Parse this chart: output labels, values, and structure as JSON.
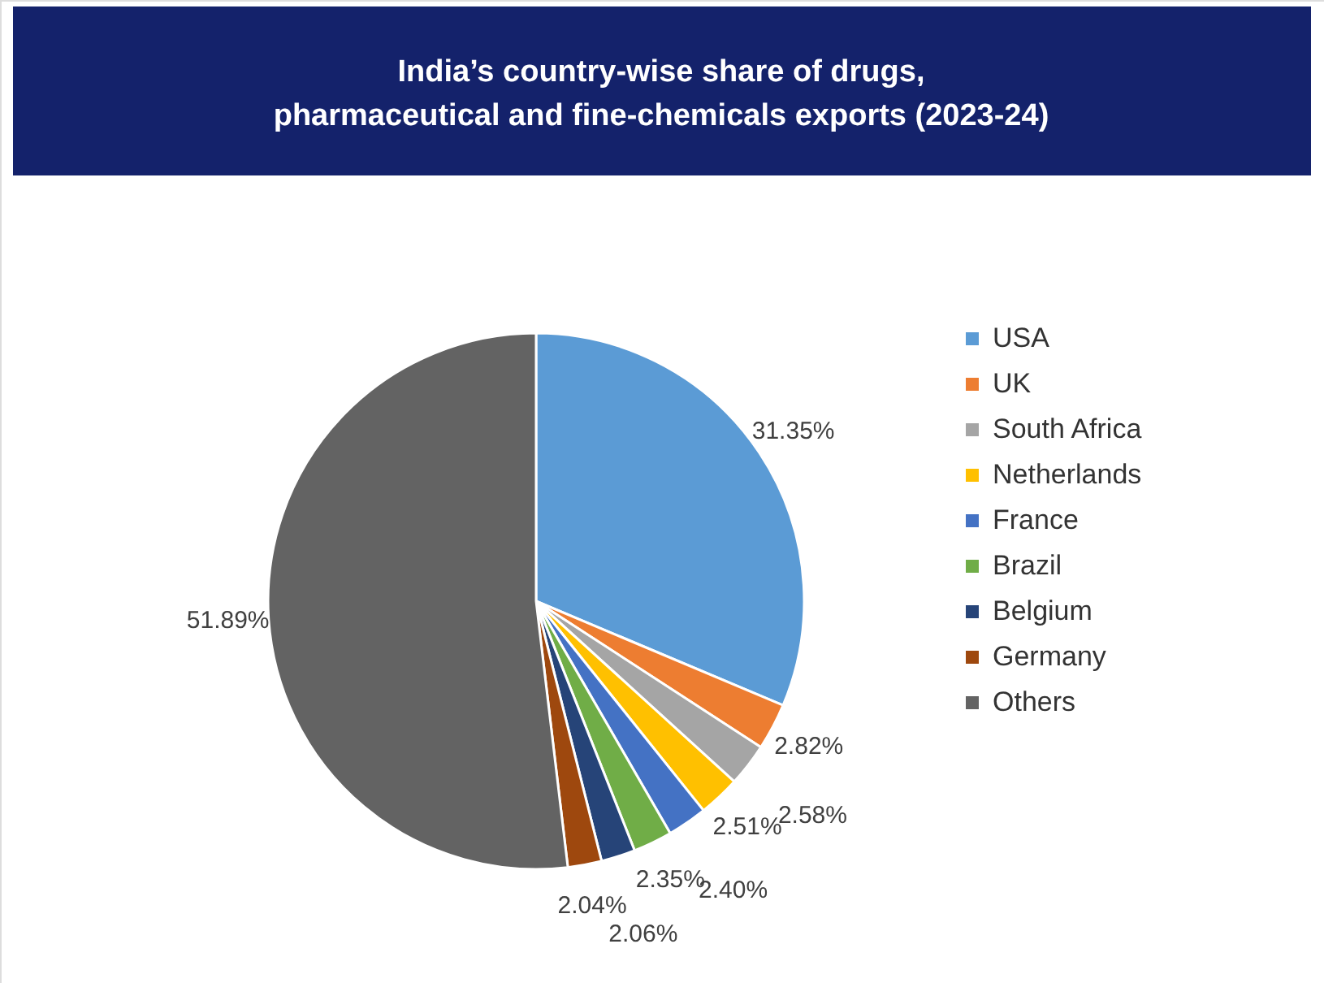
{
  "chart_data": {
    "type": "pie",
    "title": "India’s country-wise share of drugs, pharmaceutical and fine-chemicals exports (2023-24)",
    "categories": [
      "USA",
      "UK",
      "South Africa",
      "Netherlands",
      "France",
      "Brazil",
      "Belgium",
      "Germany",
      "Others"
    ],
    "values": [
      31.35,
      2.82,
      2.58,
      2.51,
      2.4,
      2.35,
      2.06,
      2.04,
      51.89
    ],
    "colors": [
      "#5b9bd5",
      "#ed7d31",
      "#a5a5a5",
      "#ffc000",
      "#4472c4",
      "#70ad47",
      "#264478",
      "#9e480e",
      "#636363"
    ],
    "value_labels": [
      "31.35%",
      "2.82%",
      "2.58%",
      "2.51%",
      "2.40%",
      "2.35%",
      "2.06%",
      "2.04%",
      "51.89%"
    ],
    "legend": "right"
  }
}
